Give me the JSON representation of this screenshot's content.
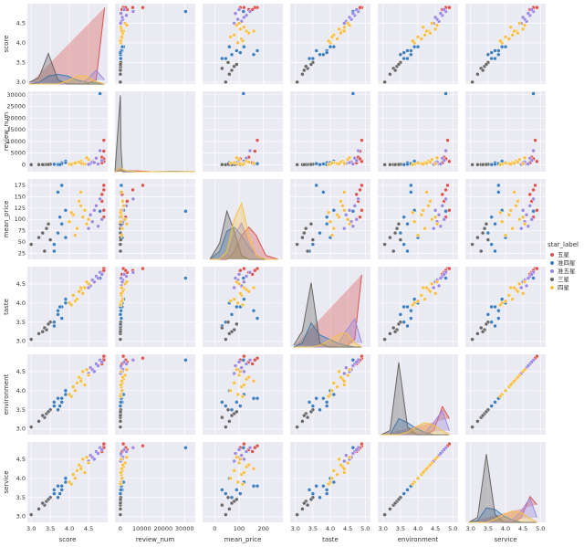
{
  "chart_data": {
    "type": "pairplot",
    "variables": [
      "score",
      "review_num",
      "mean_price",
      "taste",
      "environment",
      "service"
    ],
    "legend_title": "star_label",
    "legend": "right",
    "grid": true,
    "axes": {
      "score": {
        "xlim": [
          2.9,
          5.0
        ],
        "xticks": [
          {
            "value": 3,
            "label": "3.0"
          },
          3.5,
          {
            "value": 4,
            "label": "4.0"
          },
          4.5
        ],
        "ylim": [
          2.95,
          5.0
        ],
        "yticks": [
          {
            "value": 3,
            "label": "3.0"
          },
          3.5,
          {
            "value": 4,
            "label": "4.0"
          },
          4.5
        ]
      },
      "review_num": {
        "xlim": [
          -2500,
          35000
        ],
        "xticks": [
          0,
          10000,
          20000,
          30000
        ],
        "ylim": [
          -3000,
          31500
        ],
        "yticks": [
          0,
          5000,
          10000,
          15000,
          20000,
          25000,
          30000
        ]
      },
      "mean_price": {
        "xlim": [
          -50,
          280
        ],
        "xticks": [
          0,
          100,
          200
        ],
        "ylim": [
          12,
          189
        ],
        "yticks": [
          25,
          50,
          75,
          100,
          125,
          150,
          175
        ]
      },
      "taste": {
        "xlim": [
          2.85,
          5.15
        ],
        "xticks": [
          {
            "value": 3,
            "label": "3.0"
          },
          3.5,
          {
            "value": 4,
            "label": "4.0"
          },
          4.5,
          {
            "value": 5,
            "label": "5.0"
          }
        ],
        "ylim": [
          2.85,
          4.95
        ],
        "yticks": [
          {
            "value": 3,
            "label": "3.0"
          },
          3.5,
          {
            "value": 4,
            "label": "4.0"
          },
          4.5
        ]
      },
      "environment": {
        "xlim": [
          2.85,
          5.15
        ],
        "xticks": [
          {
            "value": 3,
            "label": "3.0"
          },
          3.5,
          {
            "value": 4,
            "label": "4.0"
          },
          4.5,
          {
            "value": 5,
            "label": "5.0"
          }
        ],
        "ylim": [
          2.85,
          4.95
        ],
        "yticks": [
          {
            "value": 3,
            "label": "3.0"
          },
          3.5,
          {
            "value": 4,
            "label": "4.0"
          },
          4.5
        ]
      },
      "service": {
        "xlim": [
          2.85,
          5.15
        ],
        "xticks": [
          {
            "value": 3,
            "label": "3.0"
          },
          3.5,
          {
            "value": 4,
            "label": "4.0"
          },
          4.5,
          {
            "value": 5,
            "label": "5.0"
          }
        ],
        "ylim": [
          2.85,
          4.95
        ],
        "yticks": [
          {
            "value": 3,
            "label": "3.0"
          },
          3.5,
          {
            "value": 4,
            "label": "4.0"
          },
          4.5
        ]
      }
    },
    "kde_x": {
      "score": [
        2.95,
        3.2,
        3.45,
        3.7,
        3.95,
        4.2,
        4.45,
        4.7,
        4.92
      ],
      "review_num": [
        -2500,
        0,
        300,
        1000,
        3000,
        8000,
        15000,
        25000,
        35000
      ],
      "mean_price": [
        -20,
        20,
        50,
        80,
        110,
        140,
        170,
        210,
        260
      ],
      "taste": [
        2.95,
        3.2,
        3.45,
        3.7,
        3.95,
        4.2,
        4.45,
        4.7,
        4.9
      ],
      "environment": [
        2.95,
        3.2,
        3.45,
        3.7,
        3.95,
        4.2,
        4.45,
        4.7,
        4.9
      ],
      "service": [
        2.95,
        3.2,
        3.45,
        3.7,
        3.95,
        4.2,
        4.45,
        4.7,
        4.9
      ]
    },
    "series": [
      {
        "name": "五星",
        "color": "#d9534f",
        "score": [
          4.9,
          4.9,
          4.85,
          4.9,
          4.85,
          4.9
        ],
        "review_num": [
          10500,
          5800,
          3200,
          1400,
          800,
          2500
        ],
        "mean_price": [
          175,
          165,
          140,
          120,
          155,
          105
        ],
        "taste": [
          4.9,
          4.85,
          4.8,
          4.9,
          4.75,
          4.85
        ],
        "environment": [
          4.85,
          4.8,
          4.75,
          4.9,
          4.7,
          4.8
        ],
        "service": [
          4.85,
          4.8,
          4.75,
          4.9,
          4.7,
          4.8
        ],
        "kde": {
          "score": [
            0,
            0,
            0,
            0,
            0,
            0,
            0,
            0.05,
            0.95
          ],
          "review_num": [
            0,
            0.01,
            0.01,
            0.01,
            0.01,
            0.01,
            0,
            0,
            0
          ],
          "mean_price": [
            0,
            0,
            0,
            0.1,
            0.3,
            0.4,
            0.3,
            0.05,
            0
          ],
          "taste": [
            0,
            0,
            0,
            0,
            0,
            0,
            0,
            0.1,
            0.9
          ],
          "environment": [
            0,
            0,
            0,
            0,
            0,
            0,
            0.05,
            0.35,
            0.2
          ],
          "service": [
            0,
            0,
            0,
            0,
            0,
            0,
            0.06,
            0.32,
            0.22
          ]
        }
      },
      {
        "name": "准四星",
        "color": "#3b7dbf",
        "score": [
          3.6,
          3.7,
          3.8,
          3.9,
          3.7,
          3.8,
          3.6,
          3.9,
          3.75,
          4.8
        ],
        "review_num": [
          120,
          300,
          800,
          1500,
          60,
          450,
          200,
          900,
          30,
          30500
        ],
        "mean_price": [
          45,
          160,
          90,
          120,
          70,
          175,
          30,
          60,
          105,
          118
        ],
        "taste": [
          3.5,
          3.8,
          3.9,
          4.1,
          3.7,
          3.6,
          3.4,
          4.0,
          3.9,
          4.65
        ],
        "environment": [
          3.6,
          3.8,
          3.7,
          3.9,
          3.5,
          3.8,
          3.7,
          4.0,
          3.6,
          4.8
        ],
        "service": [
          3.6,
          3.8,
          3.7,
          3.9,
          3.5,
          3.8,
          3.7,
          4.0,
          3.6,
          4.8
        ],
        "kde": {
          "score": [
            0,
            0.02,
            0.1,
            0.12,
            0.1,
            0.05,
            0.02,
            0.02,
            0
          ],
          "review_num": [
            0,
            0.05,
            0.05,
            0.03,
            0.01,
            0,
            0,
            0.005,
            0
          ],
          "mean_price": [
            0,
            0.1,
            0.35,
            0.4,
            0.3,
            0.15,
            0.05,
            0,
            0
          ],
          "taste": [
            0,
            0.05,
            0.3,
            0.15,
            0.1,
            0.05,
            0.02,
            0,
            0
          ],
          "environment": [
            0,
            0,
            0.2,
            0.15,
            0.08,
            0.03,
            0,
            0,
            0
          ],
          "service": [
            0,
            0.02,
            0.18,
            0.16,
            0.08,
            0.03,
            0,
            0,
            0
          ]
        }
      },
      {
        "name": "准五星",
        "color": "#9c88e0",
        "score": [
          4.55,
          4.6,
          4.7,
          4.75,
          4.8,
          4.65,
          4.85,
          4.5
        ],
        "review_num": [
          500,
          1200,
          2800,
          300,
          6000,
          900,
          1800,
          150
        ],
        "mean_price": [
          110,
          95,
          130,
          85,
          145,
          120,
          100,
          80
        ],
        "taste": [
          4.45,
          4.6,
          4.7,
          4.65,
          4.8,
          4.55,
          4.75,
          4.4
        ],
        "environment": [
          4.6,
          4.55,
          4.7,
          4.65,
          4.8,
          4.5,
          4.75,
          4.45
        ],
        "service": [
          4.6,
          4.55,
          4.7,
          4.65,
          4.8,
          4.5,
          4.75,
          4.45
        ],
        "kde": {
          "score": [
            0,
            0,
            0,
            0,
            0,
            0,
            0.05,
            0.17,
            0.05
          ],
          "review_num": [
            0,
            0.03,
            0.03,
            0.02,
            0.01,
            0,
            0,
            0,
            0
          ],
          "mean_price": [
            0,
            0,
            0.05,
            0.3,
            0.45,
            0.2,
            0.05,
            0,
            0
          ],
          "taste": [
            0,
            0,
            0,
            0,
            0,
            0.02,
            0.2,
            0.35,
            0.05
          ],
          "environment": [
            0,
            0,
            0,
            0,
            0,
            0.02,
            0.15,
            0.3,
            0.05
          ],
          "service": [
            0,
            0,
            0,
            0,
            0,
            0.03,
            0.14,
            0.3,
            0.06
          ]
        }
      },
      {
        "name": "三星",
        "color": "#666666",
        "score": [
          3.0,
          3.2,
          3.35,
          3.4,
          3.5,
          3.3,
          3.45
        ],
        "review_num": [
          0,
          20,
          50,
          100,
          200,
          40,
          80
        ],
        "mean_price": [
          45,
          60,
          30,
          80,
          55,
          70,
          90
        ],
        "taste": [
          3.05,
          3.2,
          3.35,
          3.3,
          3.5,
          3.25,
          3.45
        ],
        "environment": [
          3.05,
          3.2,
          3.3,
          3.4,
          3.5,
          3.35,
          3.45
        ],
        "service": [
          3.05,
          3.2,
          3.3,
          3.4,
          3.5,
          3.35,
          3.45
        ],
        "kde": {
          "score": [
            0.02,
            0.08,
            0.38,
            0.05,
            0,
            0,
            0,
            0,
            0
          ],
          "review_num": [
            0,
            0.95,
            0.3,
            0,
            0,
            0,
            0,
            0,
            0
          ],
          "mean_price": [
            0,
            0.2,
            0.6,
            0.35,
            0.05,
            0,
            0,
            0,
            0
          ],
          "taste": [
            0.02,
            0.2,
            0.8,
            0.05,
            0,
            0,
            0,
            0,
            0
          ],
          "environment": [
            0,
            0.05,
            0.9,
            0.1,
            0,
            0,
            0,
            0,
            0
          ],
          "service": [
            0,
            0.06,
            0.85,
            0.1,
            0,
            0,
            0,
            0,
            0
          ]
        }
      },
      {
        "name": "四星",
        "color": "#f5c04a",
        "score": [
          4.0,
          4.1,
          4.2,
          4.3,
          4.4,
          4.5,
          4.15,
          4.25,
          4.35,
          4.05,
          4.45,
          4.3
        ],
        "review_num": [
          200,
          500,
          900,
          1500,
          300,
          2200,
          700,
          1100,
          400,
          100,
          3000,
          600
        ],
        "mean_price": [
          95,
          110,
          80,
          130,
          120,
          100,
          65,
          140,
          105,
          115,
          90,
          160
        ],
        "taste": [
          4.0,
          4.2,
          4.1,
          4.35,
          4.4,
          4.5,
          4.05,
          4.3,
          4.25,
          3.95,
          4.55,
          4.4
        ],
        "environment": [
          3.9,
          4.1,
          4.2,
          4.3,
          4.15,
          4.4,
          4.0,
          4.35,
          4.5,
          3.85,
          4.55,
          4.25
        ],
        "service": [
          3.9,
          4.1,
          4.2,
          4.3,
          4.15,
          4.4,
          4.0,
          4.35,
          4.5,
          3.85,
          4.55,
          4.25
        ],
        "kde": {
          "score": [
            0,
            0,
            0,
            0,
            0.04,
            0.1,
            0.1,
            0.03,
            0
          ],
          "review_num": [
            0,
            0.05,
            0.05,
            0.03,
            0.01,
            0,
            0,
            0,
            0
          ],
          "mean_price": [
            0,
            0,
            0.1,
            0.5,
            0.7,
            0.3,
            0.05,
            0,
            0
          ],
          "taste": [
            0,
            0,
            0,
            0.02,
            0.08,
            0.15,
            0.18,
            0.05,
            0
          ],
          "environment": [
            0,
            0,
            0,
            0.03,
            0.1,
            0.15,
            0.12,
            0.05,
            0
          ],
          "service": [
            0,
            0,
            0,
            0.04,
            0.1,
            0.14,
            0.12,
            0.05,
            0
          ]
        }
      }
    ]
  }
}
